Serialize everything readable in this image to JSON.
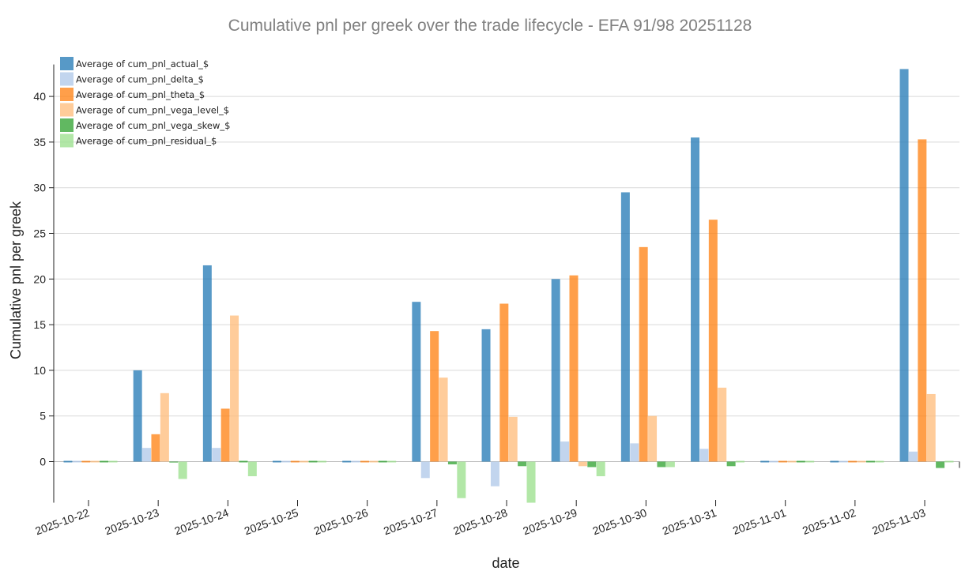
{
  "chart_data": {
    "type": "bar",
    "title": "Cumulative pnl per greek over the trade lifecycle - EFA 91/98 20251128",
    "xlabel": "date",
    "ylabel": "Cumulative pnl per greek",
    "ylim": [
      -4.5,
      43.5
    ],
    "yticks": [
      0,
      5,
      10,
      15,
      20,
      25,
      30,
      35,
      40
    ],
    "grid": true,
    "legend_position": "top-left",
    "categories": [
      "2025-10-22",
      "2025-10-23",
      "2025-10-24",
      "2025-10-25",
      "2025-10-26",
      "2025-10-27",
      "2025-10-28",
      "2025-10-29",
      "2025-10-30",
      "2025-10-31",
      "2025-11-01",
      "2025-11-02",
      "2025-11-03"
    ],
    "series": [
      {
        "name": "Average of cum_pnl_actual_$",
        "color": "#1f77b4",
        "values": [
          0,
          10,
          21.5,
          0,
          0,
          17.5,
          14.5,
          20,
          29.5,
          35.5,
          0,
          0,
          43
        ]
      },
      {
        "name": "Average of cum_pnl_delta_$",
        "color": "#aec7e8",
        "values": [
          0,
          1.5,
          1.5,
          0,
          0,
          -1.8,
          -2.7,
          2.2,
          2,
          1.4,
          0,
          0,
          1.1
        ]
      },
      {
        "name": "Average of cum_pnl_theta_$",
        "color": "#ff7f0e",
        "values": [
          0,
          3,
          5.8,
          0,
          0,
          14.3,
          17.3,
          20.4,
          23.5,
          26.5,
          0,
          0,
          35.3
        ]
      },
      {
        "name": "Average of cum_pnl_vega_level_$",
        "color": "#ffbb78",
        "values": [
          0,
          7.5,
          16,
          0,
          0,
          9.2,
          4.9,
          -0.5,
          5,
          8.1,
          0,
          0,
          7.4
        ]
      },
      {
        "name": "Average of cum_pnl_vega_skew_$",
        "color": "#2ca02c",
        "values": [
          0,
          -0.1,
          0,
          0,
          0,
          -0.3,
          -0.5,
          -0.6,
          -0.6,
          -0.5,
          0,
          0,
          -0.7
        ]
      },
      {
        "name": "Average of cum_pnl_residual_$",
        "color": "#98df8a",
        "values": [
          0,
          -1.9,
          -1.6,
          0,
          0,
          -4,
          -4.5,
          -1.6,
          -0.6,
          0,
          0,
          0,
          0
        ]
      }
    ]
  }
}
